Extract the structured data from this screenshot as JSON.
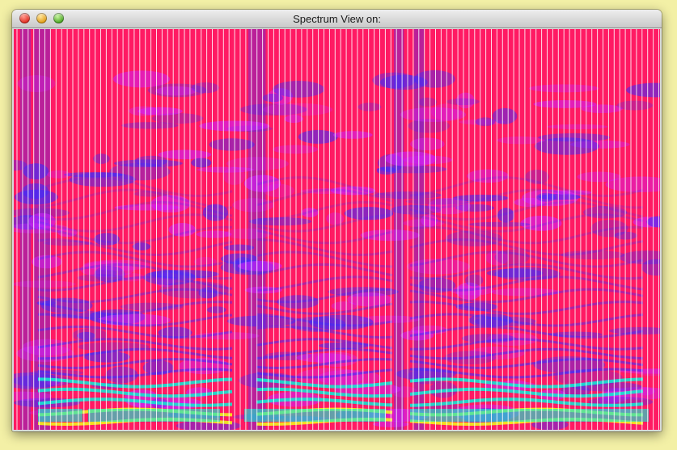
{
  "window": {
    "title": "Spectrum View on:",
    "buttons": {
      "close": "close-icon",
      "minimize": "minimize-icon",
      "zoom": "zoom-icon"
    }
  },
  "spectrogram": {
    "colors": {
      "background": "#ff1a63",
      "low": "#cc22ff",
      "mid": "#3a2dff",
      "high": "#12e6d0",
      "peak": "#f2f21a",
      "frame_line": "#ffffff"
    }
  }
}
